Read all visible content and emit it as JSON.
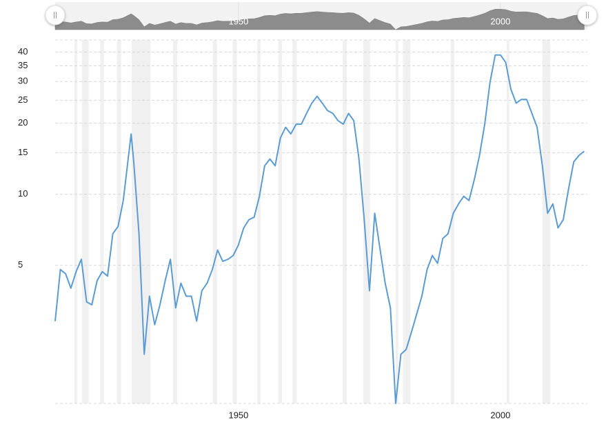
{
  "chart_data": {
    "type": "line",
    "x": [
      1915,
      1916,
      1917,
      1918,
      1919,
      1920,
      1921,
      1922,
      1923,
      1924,
      1925,
      1926,
      1927,
      1928,
      1929,
      1929.5,
      1930,
      1931,
      1932,
      1933,
      1934,
      1935,
      1936,
      1937,
      1938,
      1939,
      1940,
      1941,
      1942,
      1943,
      1944,
      1945,
      1946,
      1947,
      1948,
      1949,
      1950,
      1951,
      1952,
      1953,
      1954,
      1955,
      1956,
      1957,
      1958,
      1959,
      1960,
      1961,
      1962,
      1963,
      1964,
      1965,
      1966,
      1967,
      1968,
      1969,
      1970,
      1971,
      1972,
      1973,
      1974,
      1975,
      1976,
      1977,
      1978,
      1979,
      1980,
      1981,
      1982,
      1983,
      1984,
      1985,
      1986,
      1987,
      1988,
      1989,
      1990,
      1991,
      1992,
      1993,
      1994,
      1995,
      1996,
      1997,
      1998,
      1999,
      2000,
      2001,
      2002,
      2003,
      2004,
      2005,
      2006,
      2007,
      2008,
      2009,
      2010,
      2011,
      2012,
      2013,
      2014,
      2015,
      2016
    ],
    "series": [
      {
        "color": "#5a9bd4",
        "values": [
          2.9,
          4.8,
          4.6,
          4.0,
          4.7,
          5.3,
          3.5,
          3.4,
          4.3,
          4.7,
          4.5,
          6.8,
          7.3,
          9.4,
          14.5,
          18,
          13.7,
          6.8,
          2.1,
          3.7,
          2.8,
          3.4,
          4.3,
          5.3,
          3.3,
          4.2,
          3.7,
          3.7,
          2.9,
          3.9,
          4.2,
          4.8,
          5.8,
          5.2,
          5.3,
          5.5,
          6.1,
          7.2,
          7.8,
          8.0,
          9.8,
          13.2,
          14.1,
          13.2,
          17.3,
          19.2,
          18,
          19.8,
          19.8,
          22,
          24.3,
          26,
          24.3,
          22.6,
          22,
          20.5,
          19.8,
          22,
          20.5,
          14.1,
          7.8,
          3.9,
          8.3,
          5.9,
          4.2,
          3.3,
          1.3,
          2.1,
          2.2,
          2.6,
          3.1,
          3.7,
          4.8,
          5.5,
          5.1,
          6.5,
          6.8,
          8.3,
          9.1,
          9.8,
          9.4,
          11.5,
          14.6,
          19.8,
          29.7,
          38.9,
          38.9,
          36.2,
          27.8,
          24.3,
          25.2,
          25.2,
          22,
          19.2,
          13.2,
          8.3,
          9.1,
          7.2,
          7.8,
          10.5,
          13.7,
          14.6,
          15.2
        ]
      }
    ],
    "xlim": [
      1915,
      2016.6
    ],
    "xticks": [
      1950,
      2000
    ],
    "ylim": [
      1.3,
      45
    ],
    "yticks": [
      5,
      10,
      15,
      20,
      25,
      30,
      35,
      40
    ],
    "log_scale": true,
    "grid": true,
    "shaded_ranges": [
      [
        1918.7,
        1919.2
      ],
      [
        1920.1,
        1921.4
      ],
      [
        1923.6,
        1924.3
      ],
      [
        1926.8,
        1927.6
      ],
      [
        1929.6,
        1933.2
      ],
      [
        1937.5,
        1938.3
      ],
      [
        1945.1,
        1945.9
      ],
      [
        1948.9,
        1949.7
      ],
      [
        1953.6,
        1954.2
      ],
      [
        1957.6,
        1958.3
      ],
      [
        1960.3,
        1961.1
      ],
      [
        1969.9,
        1970.7
      ],
      [
        1973.8,
        1975.1
      ],
      [
        1980.0,
        1980.5
      ],
      [
        1981.4,
        1982.8
      ],
      [
        1990.5,
        1991.2
      ],
      [
        2001.2,
        2001.7
      ],
      [
        2008.0,
        2009.5
      ]
    ]
  }
}
